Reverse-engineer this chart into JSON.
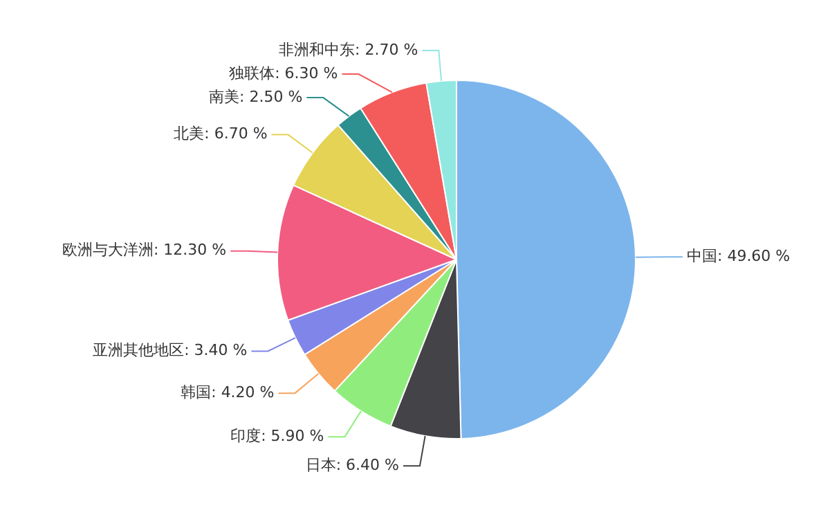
{
  "chart_data": {
    "type": "pie",
    "categories": [
      "中国",
      "日本",
      "印度",
      "韩国",
      "亚洲其他地区",
      "欧洲与大洋洲",
      "北美",
      "南美",
      "独联体",
      "非洲和中东"
    ],
    "values": [
      49.6,
      6.4,
      5.9,
      4.2,
      3.4,
      12.3,
      6.7,
      2.5,
      6.3,
      2.7
    ],
    "value_labels": [
      "49.60 %",
      "6.40 %",
      "5.90 %",
      "4.20 %",
      "3.40 %",
      "12.30 %",
      "6.70 %",
      "2.50 %",
      "6.30 %",
      "2.70 %"
    ],
    "colors": [
      "#7cb5ec",
      "#434348",
      "#90ed7d",
      "#f7a35c",
      "#8085e9",
      "#f15c80",
      "#e4d354",
      "#2b908f",
      "#f45b5b",
      "#91e8e1"
    ],
    "legend": false
  }
}
